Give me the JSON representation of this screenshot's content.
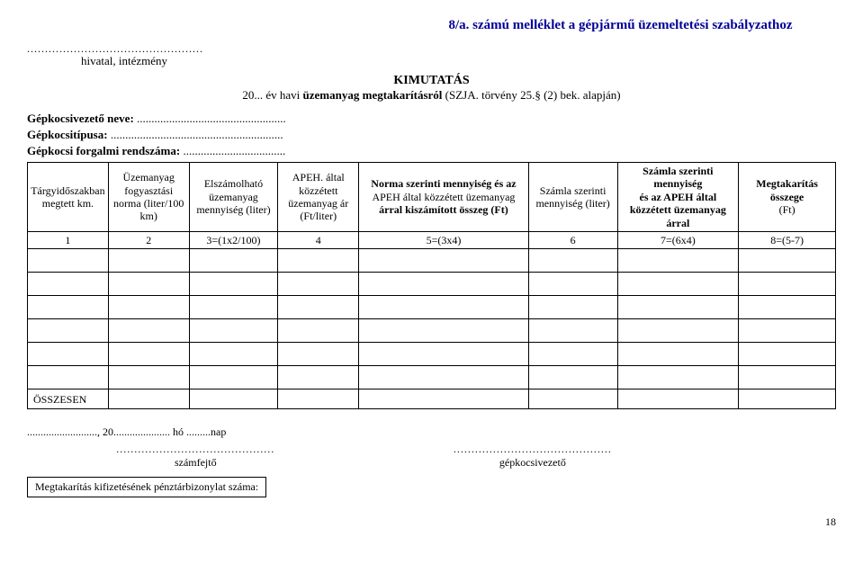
{
  "header": {
    "attachment_title": "8/a. számú melléklet a gépjármű üzemeltetési szabályzathoz",
    "dotted_top": ".................................................",
    "institution_label": "hivatal, intézmény",
    "kimutatas": "KIMUTATÁS",
    "subtitle_prefix": "20... év havi ",
    "subtitle_bold": "üzemanyag megtakarításról",
    "subtitle_suffix": " (SZJA. törvény 25.§ (2) bek. alapján)",
    "driver_name_label": "Gépkocsivezető neve:",
    "driver_name_dots": "...................................................",
    "vehicle_type_label": "Gépkocsitípusa:",
    "vehicle_type_dots": "...........................................................",
    "plate_label": "Gépkocsi forgalmi rendszáma:",
    "plate_dots": "..................................."
  },
  "table": {
    "columns": [
      {
        "header": "Tárgyidőszakban megtett km.",
        "width": "10%"
      },
      {
        "header": "Üzemanyag fogyasztási norma (liter/100 km)",
        "width": "10%"
      },
      {
        "header": "Elszámolható üzemanyag mennyiség (liter)",
        "width": "11%"
      },
      {
        "header": "APEH. által közzétett üzemanyag ár (Ft/liter)",
        "width": "10%"
      },
      {
        "header": "Norma szerinti mennyiség és az\nAPEH által közzétett üzemanyag\nárral kiszámított összeg (Ft)",
        "width": "21%",
        "bold_lines": [
          0,
          2
        ]
      },
      {
        "header": "Számla szerinti mennyiség (liter)",
        "width": "11%"
      },
      {
        "header": "Számla szerinti mennyiség\nés az APEH által közzétett üzemanyag árral",
        "width": "15%",
        "bold_lines": [
          0,
          1
        ]
      },
      {
        "header": "Megtakarítás összege\n(Ft)",
        "width": "12%",
        "bold_lines": [
          0
        ]
      }
    ],
    "formula_row": [
      "1",
      "2",
      "3=(1x2/100)",
      "4",
      "5=(3x4)",
      "6",
      "7=(6x4)",
      "8=(5-7)"
    ],
    "empty_rows": 6,
    "total_label": "ÖSSZESEN"
  },
  "footer": {
    "date_line": ".........................., 20..................... hó .........nap",
    "sig1_dots": "............................................",
    "sig1_label": "számfejtő",
    "sig2_dots": "............................................",
    "sig2_label": "gépkocsivezető",
    "bottom_box": "Megtakarítás kifizetésének pénztárbizonylat száma:",
    "page_num": "18"
  }
}
